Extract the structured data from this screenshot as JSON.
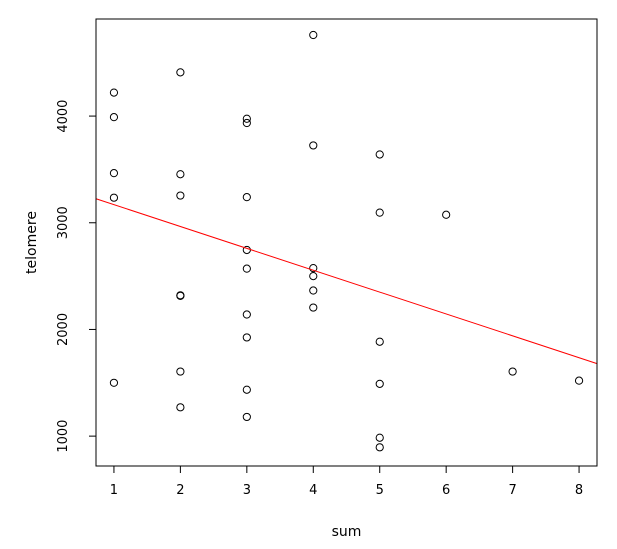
{
  "chart_data": {
    "type": "scatter",
    "xlabel": "sum",
    "ylabel": "telomere",
    "xlim": [
      0.73,
      8.27
    ],
    "ylim": [
      720,
      4910
    ],
    "x_ticks": [
      1,
      2,
      3,
      4,
      5,
      6,
      7,
      8
    ],
    "x_tick_labels": [
      "1",
      "2",
      "3",
      "4",
      "5",
      "6",
      "7",
      "8"
    ],
    "y_ticks": [
      1000,
      2000,
      3000,
      4000
    ],
    "y_tick_labels": [
      "1000",
      "2000",
      "3000",
      "4000"
    ],
    "points": [
      [
        1,
        4220
      ],
      [
        1,
        3990
      ],
      [
        1,
        3465
      ],
      [
        1,
        3235
      ],
      [
        1,
        1500
      ],
      [
        2,
        4410
      ],
      [
        2,
        3455
      ],
      [
        2,
        3255
      ],
      [
        2,
        2320
      ],
      [
        2,
        2315
      ],
      [
        2,
        1605
      ],
      [
        2,
        1270
      ],
      [
        3,
        3975
      ],
      [
        3,
        3935
      ],
      [
        3,
        3240
      ],
      [
        3,
        2745
      ],
      [
        3,
        2570
      ],
      [
        3,
        2140
      ],
      [
        3,
        1925
      ],
      [
        3,
        1435
      ],
      [
        3,
        1180
      ],
      [
        4,
        4760
      ],
      [
        4,
        3725
      ],
      [
        4,
        2575
      ],
      [
        4,
        2500
      ],
      [
        4,
        2365
      ],
      [
        4,
        2205
      ],
      [
        5,
        3640
      ],
      [
        5,
        3095
      ],
      [
        5,
        1885
      ],
      [
        5,
        1490
      ],
      [
        5,
        985
      ],
      [
        5,
        895
      ],
      [
        6,
        3075
      ],
      [
        7,
        1605
      ],
      [
        8,
        1520
      ]
    ],
    "regression_line": {
      "intercept": 3375,
      "slope": -205,
      "color": "#ff0000"
    },
    "point_color": "#000000",
    "grid": false,
    "legend": "none"
  }
}
